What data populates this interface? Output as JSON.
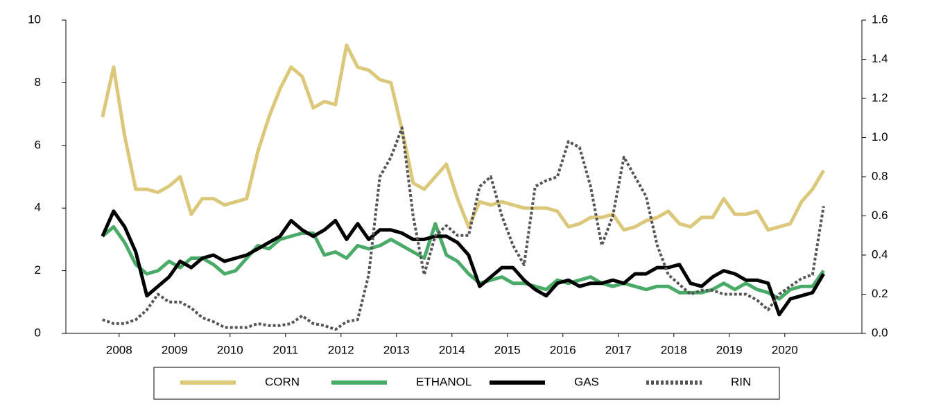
{
  "chart_data": {
    "type": "line",
    "x": [
      2008.2,
      2008.4,
      2008.6,
      2008.8,
      2009.0,
      2009.2,
      2009.4,
      2009.6,
      2009.8,
      2010.0,
      2010.2,
      2010.4,
      2010.6,
      2010.8,
      2011.0,
      2011.2,
      2011.4,
      2011.6,
      2011.8,
      2012.0,
      2012.2,
      2012.4,
      2012.6,
      2012.8,
      2013.0,
      2013.2,
      2013.4,
      2013.6,
      2013.8,
      2014.0,
      2014.2,
      2014.4,
      2014.6,
      2014.8,
      2015.0,
      2015.2,
      2015.4,
      2015.6,
      2015.8,
      2016.0,
      2016.2,
      2016.4,
      2016.6,
      2016.8,
      2017.0,
      2017.2,
      2017.4,
      2017.6,
      2017.8,
      2018.0,
      2018.2,
      2018.4,
      2018.6,
      2018.8,
      2019.0,
      2019.2,
      2019.4,
      2019.6,
      2019.8,
      2020.0,
      2020.2,
      2020.4,
      2020.6,
      2020.8,
      2021.0,
      2021.2
    ],
    "xlim": [
      2007.54,
      2021.89
    ],
    "xticks": [
      {
        "value": 2008.5,
        "label": "2008"
      },
      {
        "value": 2009.5,
        "label": "2009"
      },
      {
        "value": 2010.5,
        "label": "2010"
      },
      {
        "value": 2011.5,
        "label": "2011"
      },
      {
        "value": 2012.5,
        "label": "2012"
      },
      {
        "value": 2013.5,
        "label": "2013"
      },
      {
        "value": 2014.5,
        "label": "2014"
      },
      {
        "value": 2015.5,
        "label": "2015"
      },
      {
        "value": 2016.5,
        "label": "2016"
      },
      {
        "value": 2017.5,
        "label": "2017"
      },
      {
        "value": 2018.5,
        "label": "2018"
      },
      {
        "value": 2019.5,
        "label": "2019"
      },
      {
        "value": 2020.5,
        "label": "2020"
      }
    ],
    "ylim": [
      0,
      10
    ],
    "yticks": [
      0,
      2,
      4,
      6,
      8,
      10
    ],
    "y2lim": [
      0,
      1.6
    ],
    "y2ticks": [
      {
        "value": 0,
        "label": "0.0"
      },
      0.2,
      0.4,
      0.6,
      0.8,
      {
        "value": 1,
        "label": "1.0"
      },
      1.2,
      1.4,
      1.6
    ],
    "grid": false,
    "series": [
      {
        "name": "CORN",
        "color": "#dcc87a",
        "values": [
          6.9,
          8.5,
          6.3,
          4.6,
          4.6,
          4.5,
          4.7,
          5.0,
          3.8,
          4.3,
          4.3,
          4.1,
          4.2,
          4.3,
          5.8,
          6.9,
          7.8,
          8.5,
          8.2,
          7.2,
          7.4,
          7.3,
          9.2,
          8.5,
          8.4,
          8.1,
          8.0,
          6.5,
          4.8,
          4.6,
          5.0,
          5.4,
          4.3,
          3.4,
          4.2,
          4.1,
          4.2,
          4.1,
          4.0,
          4.0,
          4.0,
          3.9,
          3.4,
          3.5,
          3.7,
          3.7,
          3.8,
          3.3,
          3.4,
          3.6,
          3.7,
          3.9,
          3.5,
          3.4,
          3.7,
          3.7,
          4.3,
          3.8,
          3.8,
          3.9,
          3.3,
          3.4,
          3.5,
          4.2,
          4.6,
          5.2
        ]
      },
      {
        "name": "ETHANOL",
        "color": "#4aaa68",
        "values": [
          3.1,
          3.4,
          2.9,
          2.2,
          1.9,
          2.0,
          2.3,
          2.1,
          2.4,
          2.4,
          2.2,
          1.9,
          2.0,
          2.4,
          2.8,
          2.7,
          3.0,
          3.1,
          3.2,
          3.2,
          2.5,
          2.6,
          2.4,
          2.8,
          2.7,
          2.8,
          3.0,
          2.8,
          2.6,
          2.4,
          3.5,
          2.5,
          2.3,
          1.9,
          1.6,
          1.7,
          1.8,
          1.6,
          1.6,
          1.5,
          1.4,
          1.7,
          1.6,
          1.7,
          1.8,
          1.6,
          1.5,
          1.6,
          1.5,
          1.4,
          1.5,
          1.5,
          1.3,
          1.3,
          1.3,
          1.4,
          1.6,
          1.4,
          1.6,
          1.4,
          1.3,
          1.1,
          1.4,
          1.5,
          1.5,
          2.0
        ]
      },
      {
        "name": "GAS",
        "color": "#000000",
        "values": [
          3.1,
          3.9,
          3.4,
          2.6,
          1.2,
          1.5,
          1.8,
          2.3,
          2.1,
          2.4,
          2.5,
          2.3,
          2.4,
          2.5,
          2.7,
          2.9,
          3.1,
          3.6,
          3.3,
          3.1,
          3.3,
          3.6,
          3.0,
          3.5,
          3.0,
          3.3,
          3.3,
          3.2,
          3.0,
          3.0,
          3.1,
          3.1,
          2.9,
          2.5,
          1.5,
          1.8,
          2.1,
          2.1,
          1.7,
          1.4,
          1.2,
          1.6,
          1.7,
          1.5,
          1.6,
          1.6,
          1.7,
          1.6,
          1.9,
          1.9,
          2.1,
          2.1,
          2.2,
          1.6,
          1.5,
          1.8,
          2.0,
          1.9,
          1.7,
          1.7,
          1.6,
          0.6,
          1.1,
          1.2,
          1.3,
          1.9
        ]
      },
      {
        "name": "RIN",
        "color": "#555555",
        "dashed": true,
        "axis": "y2",
        "values": [
          0.07,
          0.05,
          0.05,
          0.07,
          0.12,
          0.2,
          0.16,
          0.16,
          0.13,
          0.08,
          0.06,
          0.03,
          0.03,
          0.03,
          0.05,
          0.04,
          0.04,
          0.05,
          0.09,
          0.05,
          0.04,
          0.02,
          0.06,
          0.07,
          0.3,
          0.8,
          0.9,
          1.05,
          0.6,
          0.3,
          0.5,
          0.55,
          0.5,
          0.5,
          0.75,
          0.8,
          0.6,
          0.45,
          0.35,
          0.75,
          0.78,
          0.8,
          0.98,
          0.95,
          0.75,
          0.45,
          0.6,
          0.9,
          0.8,
          0.7,
          0.45,
          0.3,
          0.25,
          0.2,
          0.22,
          0.22,
          0.2,
          0.2,
          0.2,
          0.17,
          0.12,
          0.2,
          0.24,
          0.28,
          0.3,
          0.65
        ]
      }
    ]
  }
}
